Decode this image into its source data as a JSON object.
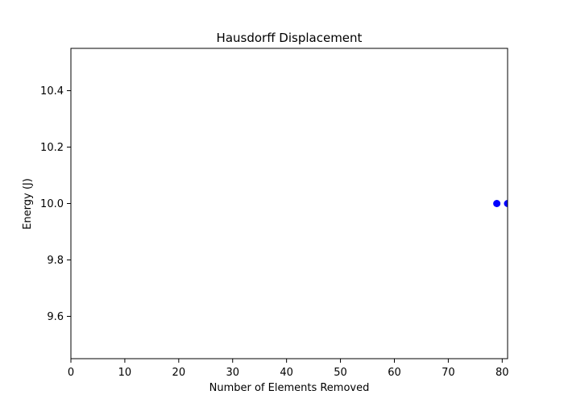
{
  "chart_data": {
    "type": "scatter",
    "title": "Hausdorff Displacement",
    "xlabel": "Number of Elements Removed",
    "ylabel": "Energy (J)",
    "xlim": [
      0,
      81
    ],
    "ylim": [
      9.45,
      10.55
    ],
    "x_ticks": [
      0,
      10,
      20,
      30,
      40,
      50,
      60,
      70,
      80
    ],
    "y_ticks": [
      9.6,
      9.8,
      10.0,
      10.2,
      10.4
    ],
    "y_tick_labels": [
      "9.6",
      "9.8",
      "10.0",
      "10.2",
      "10.4"
    ],
    "grid": false,
    "legend": false,
    "series": [
      {
        "color": "#0000ff",
        "points": [
          {
            "x": 79,
            "y": 10.0
          },
          {
            "x": 81,
            "y": 10.0
          }
        ]
      }
    ]
  }
}
